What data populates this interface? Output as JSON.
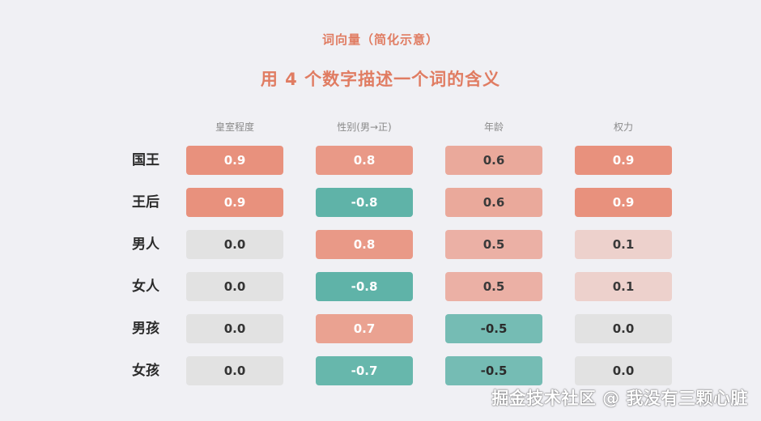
{
  "subtitle": "词向量（简化示意）",
  "title": "用 4 个数字描述一个词的含义",
  "columns": [
    "皇室程度",
    "性别(男→正)",
    "年龄",
    "权力"
  ],
  "rows": [
    {
      "label": "国王",
      "values": [
        "0.9",
        "0.8",
        "0.6",
        "0.9"
      ]
    },
    {
      "label": "王后",
      "values": [
        "0.9",
        "-0.8",
        "0.6",
        "0.9"
      ]
    },
    {
      "label": "男人",
      "values": [
        "0.0",
        "0.8",
        "0.5",
        "0.1"
      ]
    },
    {
      "label": "女人",
      "values": [
        "0.0",
        "-0.8",
        "0.5",
        "0.1"
      ]
    },
    {
      "label": "男孩",
      "values": [
        "0.0",
        "0.7",
        "-0.5",
        "0.0"
      ]
    },
    {
      "label": "女孩",
      "values": [
        "0.0",
        "-0.7",
        "-0.5",
        "0.0"
      ]
    }
  ],
  "colors": {
    "positive": "#e8917d",
    "negative": "#5fb3a8",
    "neutral": "#e2e2e2",
    "title": "#e07c62"
  },
  "watermark": "掘金技术社区 @ 我没有三颗心脏"
}
